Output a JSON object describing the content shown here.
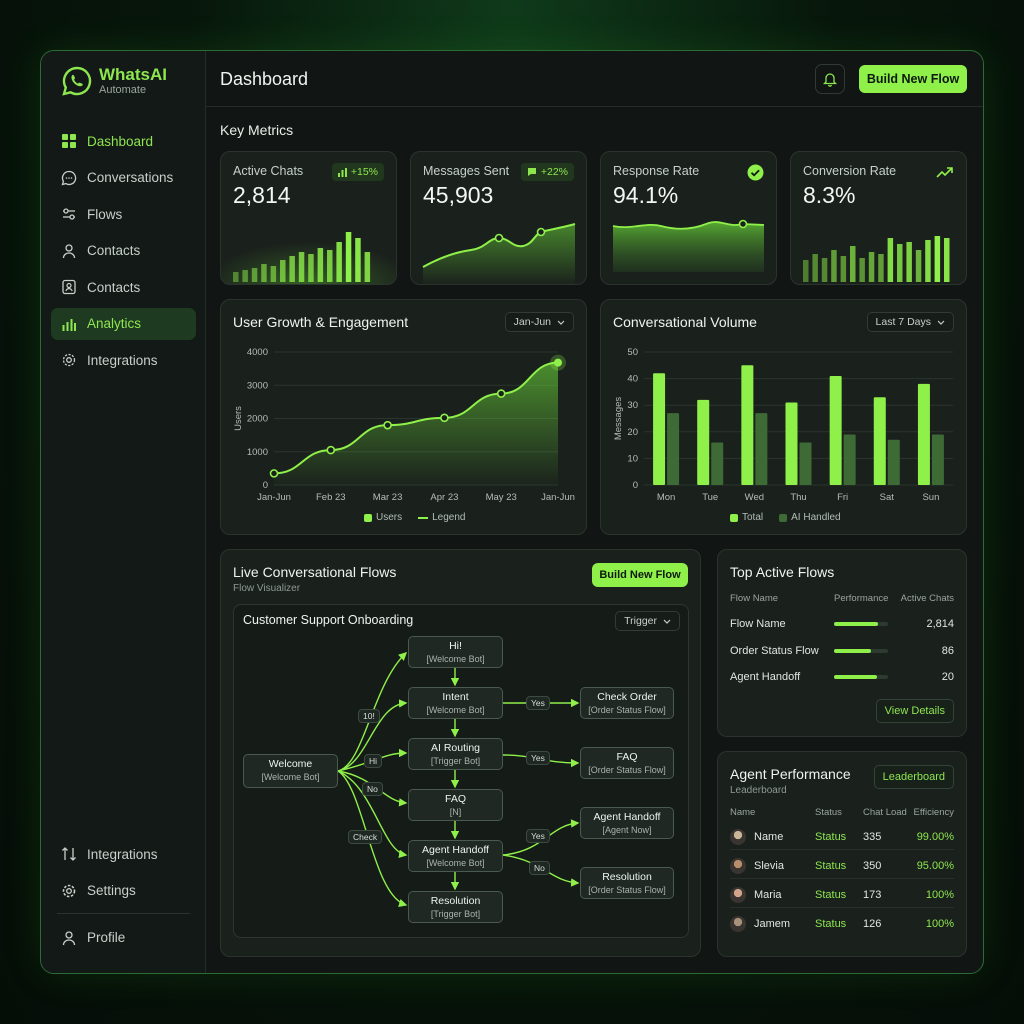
{
  "brand": {
    "name": "WhatsAI",
    "sub": "Automate"
  },
  "nav": {
    "items": [
      {
        "label": "Dashboard",
        "icon": "dashboard-icon"
      },
      {
        "label": "Conversations",
        "icon": "chat-icon"
      },
      {
        "label": "Flows",
        "icon": "flows-icon"
      },
      {
        "label": "Contacts",
        "icon": "user-icon"
      },
      {
        "label": "Contacts",
        "icon": "contact-card-icon"
      },
      {
        "label": "Analytics",
        "icon": "analytics-icon"
      },
      {
        "label": "Integrations",
        "icon": "gear-icon"
      }
    ],
    "bottom": [
      {
        "label": "Integrations",
        "icon": "integrations-icon"
      },
      {
        "label": "Settings",
        "icon": "settings-icon"
      },
      {
        "label": "Profile",
        "icon": "profile-icon"
      }
    ]
  },
  "header": {
    "title": "Dashboard",
    "build_button": "Build New Flow"
  },
  "metrics": {
    "section_title": "Key Metrics",
    "cards": [
      {
        "title": "Active Chats",
        "value": "2,814",
        "badge": "+15%"
      },
      {
        "title": "Messages Sent",
        "value": "45,903",
        "badge": "+22%"
      },
      {
        "title": "Response Rate",
        "value": "94.1%"
      },
      {
        "title": "Conversion Rate",
        "value": "8.3%"
      }
    ]
  },
  "growth": {
    "title": "User Growth & Engagement",
    "range": "Jan-Jun",
    "legend": [
      "Users",
      "Legend"
    ]
  },
  "volume": {
    "title": "Conversational Volume",
    "range": "Last 7 Days",
    "legend": [
      "Total",
      "AI Handled"
    ]
  },
  "chart_data": [
    {
      "type": "line",
      "title": "User Growth & Engagement",
      "x": [
        "Jan-Jun",
        "Feb 23",
        "Mar 23",
        "Apr 23",
        "May 23",
        "Jan-Jun"
      ],
      "values": [
        350,
        1050,
        1800,
        2020,
        2750,
        3680
      ],
      "ylabel": "Users",
      "ylim": [
        0,
        4000
      ],
      "yticks": [
        0,
        1000,
        2000,
        3000,
        4000
      ],
      "grid": true,
      "legend": "bottom"
    },
    {
      "type": "bar",
      "title": "Conversational Volume",
      "categories": [
        "Mon",
        "Tue",
        "Wed",
        "Thu",
        "Fri",
        "Sat",
        "Sun"
      ],
      "series": [
        {
          "name": "Total",
          "values": [
            42,
            32,
            45,
            31,
            41,
            33,
            38
          ]
        },
        {
          "name": "AI Handled",
          "values": [
            27,
            16,
            27,
            16,
            19,
            17,
            19
          ]
        }
      ],
      "ylabel": "Messages",
      "ylim": [
        0,
        50
      ],
      "yticks": [
        0,
        10,
        20,
        30,
        40,
        50
      ],
      "grid": true,
      "legend": "bottom"
    }
  ],
  "flows": {
    "title": "Live Conversational Flows",
    "sub": "Flow Visualizer",
    "build_button": "Build New Flow",
    "panel_title": "Customer Support Onboarding",
    "trigger": "Trigger",
    "nodes": {
      "welcome": {
        "t": "Welcome",
        "s": "[Welcome Bot]"
      },
      "hi": {
        "t": "Hi!",
        "s": "[Welcome Bot]"
      },
      "intent": {
        "t": "Intent",
        "s": "[Welcome Bot]"
      },
      "routing": {
        "t": "AI Routing",
        "s": "[Trigger Bot]"
      },
      "faq": {
        "t": "FAQ",
        "s": "[N]"
      },
      "handoff": {
        "t": "Agent Handoff",
        "s": "[Welcome Bot]"
      },
      "resolution": {
        "t": "Resolution",
        "s": "[Trigger Bot]"
      },
      "check_order": {
        "t": "Check Order",
        "s": "[Order Status Flow]"
      },
      "faq2": {
        "t": "FAQ",
        "s": "[Order Status Flow]"
      },
      "handoff2": {
        "t": "Agent Handoff",
        "s": "[Agent Now]"
      },
      "resolution2": {
        "t": "Resolution",
        "s": "[Order Status Flow]"
      }
    },
    "labels": {
      "l10": "10!",
      "hi": "Hi",
      "no": "No",
      "check": "Check",
      "yes1": "Yes",
      "yes2": "Yes",
      "yes3": "Yes",
      "no2": "No"
    }
  },
  "top_flows": {
    "title": "Top Active Flows",
    "headers": [
      "Flow Name",
      "Performance",
      "Active Chats"
    ],
    "rows": [
      {
        "name": "Flow Name",
        "perf": 0.82,
        "chats": "2,814"
      },
      {
        "name": "Order Status Flow",
        "perf": 0.68,
        "chats": "86"
      },
      {
        "name": "Agent Handoff",
        "perf": 0.8,
        "chats": "20"
      }
    ],
    "button": "View Details"
  },
  "agents": {
    "title": "Agent Performance",
    "sub": "Leaderboard",
    "button": "Leaderboard",
    "headers": [
      "Name",
      "Status",
      "Chat Load",
      "Efficiency"
    ],
    "rows": [
      {
        "name": "Name",
        "status": "Status",
        "load": "335",
        "eff": "99.00%"
      },
      {
        "name": "Slevia",
        "status": "Status",
        "load": "350",
        "eff": "95.00%"
      },
      {
        "name": "Maria",
        "status": "Status",
        "load": "173",
        "eff": "100%"
      },
      {
        "name": "Jamem",
        "status": "Status",
        "load": "126",
        "eff": "100%"
      }
    ]
  },
  "colors": {
    "accent": "#8ff04a",
    "dark_bar": "#3e6a35",
    "bg": "#111614"
  }
}
